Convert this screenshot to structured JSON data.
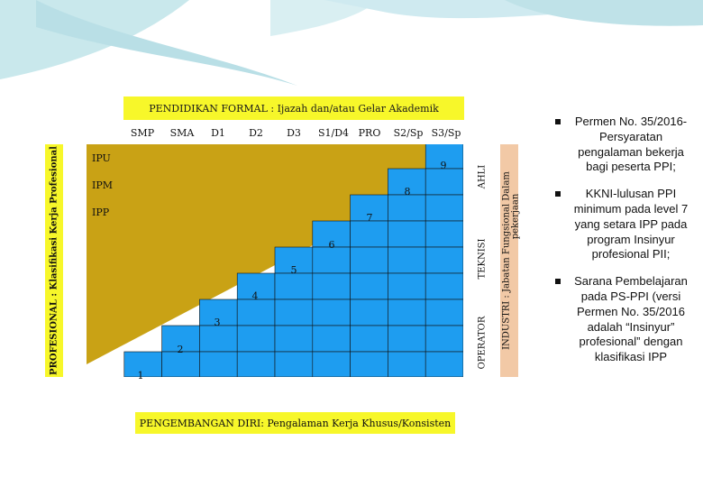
{
  "header": {
    "title": "PENDIDIKAN FORMAL : Ijazah dan/atau Gelar Akademik"
  },
  "education_levels": [
    "SMP",
    "SMA",
    "D1",
    "D2",
    "D3",
    "S1/D4",
    "PRO",
    "S2/Sp",
    "S3/Sp"
  ],
  "left_axis": {
    "label": "PROFESIONAL : Klasifikasi Kerja Profesional"
  },
  "rows": [
    "IPU",
    "IPM",
    "IPP"
  ],
  "levels": [
    "1",
    "2",
    "3",
    "4",
    "5",
    "6",
    "7",
    "8",
    "9"
  ],
  "right_axis": {
    "categories": [
      "AHLI",
      "TEKNISI",
      "OPERATOR"
    ]
  },
  "industry": {
    "label_line1": "INDUSTRI : Jabatan Fungsional Dalam",
    "label_line2": "pekerjaan"
  },
  "footer": {
    "title": "PENGEMBANGAN DIRI: Pengalaman Kerja Khusus/Konsisten"
  },
  "bullets": [
    "Permen No. 35/2016- Persyaratan pengalaman bekerja bagi peserta PPI;",
    "KKNI-lulusan PPI minimum pada level 7 yang setara IPP pada program Insinyur profesional PII;",
    "Sarana Pembelajaran pada PS-PPI (versi Permen No. 35/2016 adalah “Insinyur” profesional” dengan klasifikasi IPP"
  ],
  "colors": {
    "header_yellow": "#f7f72a",
    "gold": "#c9a215",
    "cell_blue": "#1e9df0",
    "industry_peach": "#f2c9a6",
    "deco_teal": "#c9e8ec"
  }
}
